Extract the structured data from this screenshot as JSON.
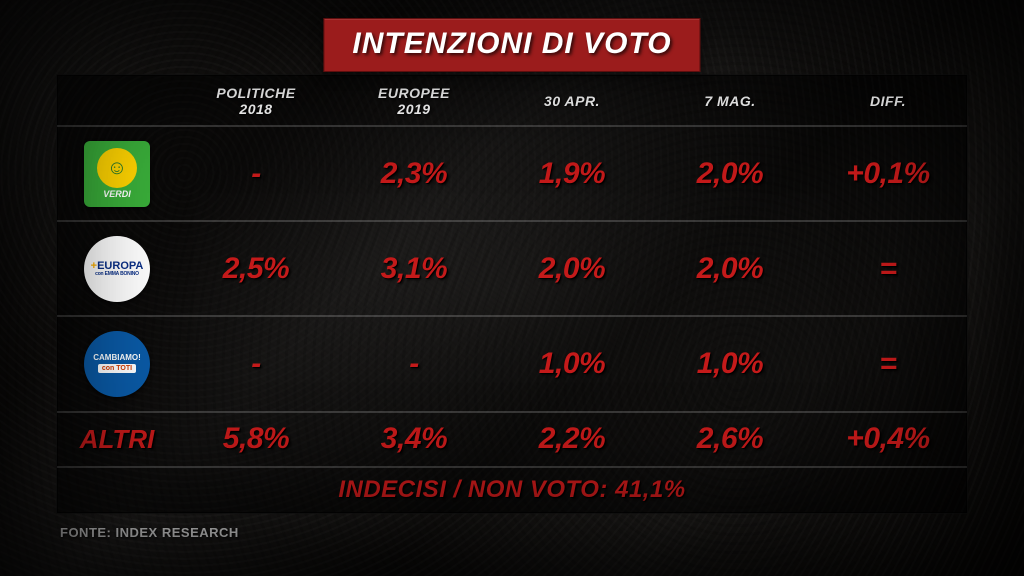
{
  "title": "INTENZIONI DI VOTO",
  "columns": [
    "POLITICHE 2018",
    "EUROPEE 2019",
    "30 APR.",
    "7 MAG.",
    "DIFF."
  ],
  "value_color": "#c41a1a",
  "value_fontsize": 30,
  "header_color": "#ffffff",
  "header_fontsize": 14,
  "panel_bg": "rgba(0,0,0,0.58)",
  "grid_color": "rgba(255,255,255,0.18)",
  "title_bg": "#9b1c1c",
  "rows": [
    {
      "party_key": "verdi",
      "party_label": "VERDI",
      "logo_bg": "#3aae3a",
      "logo_text_color": "#ffffff",
      "logo_accent_bg": "#ffd400",
      "values": [
        "-",
        "2,3%",
        "1,9%",
        "2,0%",
        "+0,1%"
      ]
    },
    {
      "party_key": "piu-europa",
      "party_label_top": "+EUROPA",
      "party_label_bottom": "con EMMA BONINO",
      "logo_bg": "#ffffff",
      "logo_text_color": "#0a2f87",
      "logo_accent": "#ffb300",
      "values": [
        "2,5%",
        "3,1%",
        "2,0%",
        "2,0%",
        "="
      ]
    },
    {
      "party_key": "cambiamo",
      "party_label_top": "CAMBIAMO!",
      "party_label_bottom": "con TOTI",
      "logo_bg": "#0a5aa6",
      "logo_text_color": "#ffffff",
      "logo_box_bg": "#ffffff",
      "logo_box_text": "#d23a00",
      "values": [
        "-",
        "-",
        "1,0%",
        "1,0%",
        "="
      ]
    },
    {
      "party_key": "altri",
      "party_label": "ALTRI",
      "is_text_label": true,
      "values": [
        "5,8%",
        "3,4%",
        "2,2%",
        "2,6%",
        "+0,4%"
      ]
    }
  ],
  "footer": "INDECISI / NON VOTO: 41,1%",
  "source": "FONTE: INDEX RESEARCH"
}
